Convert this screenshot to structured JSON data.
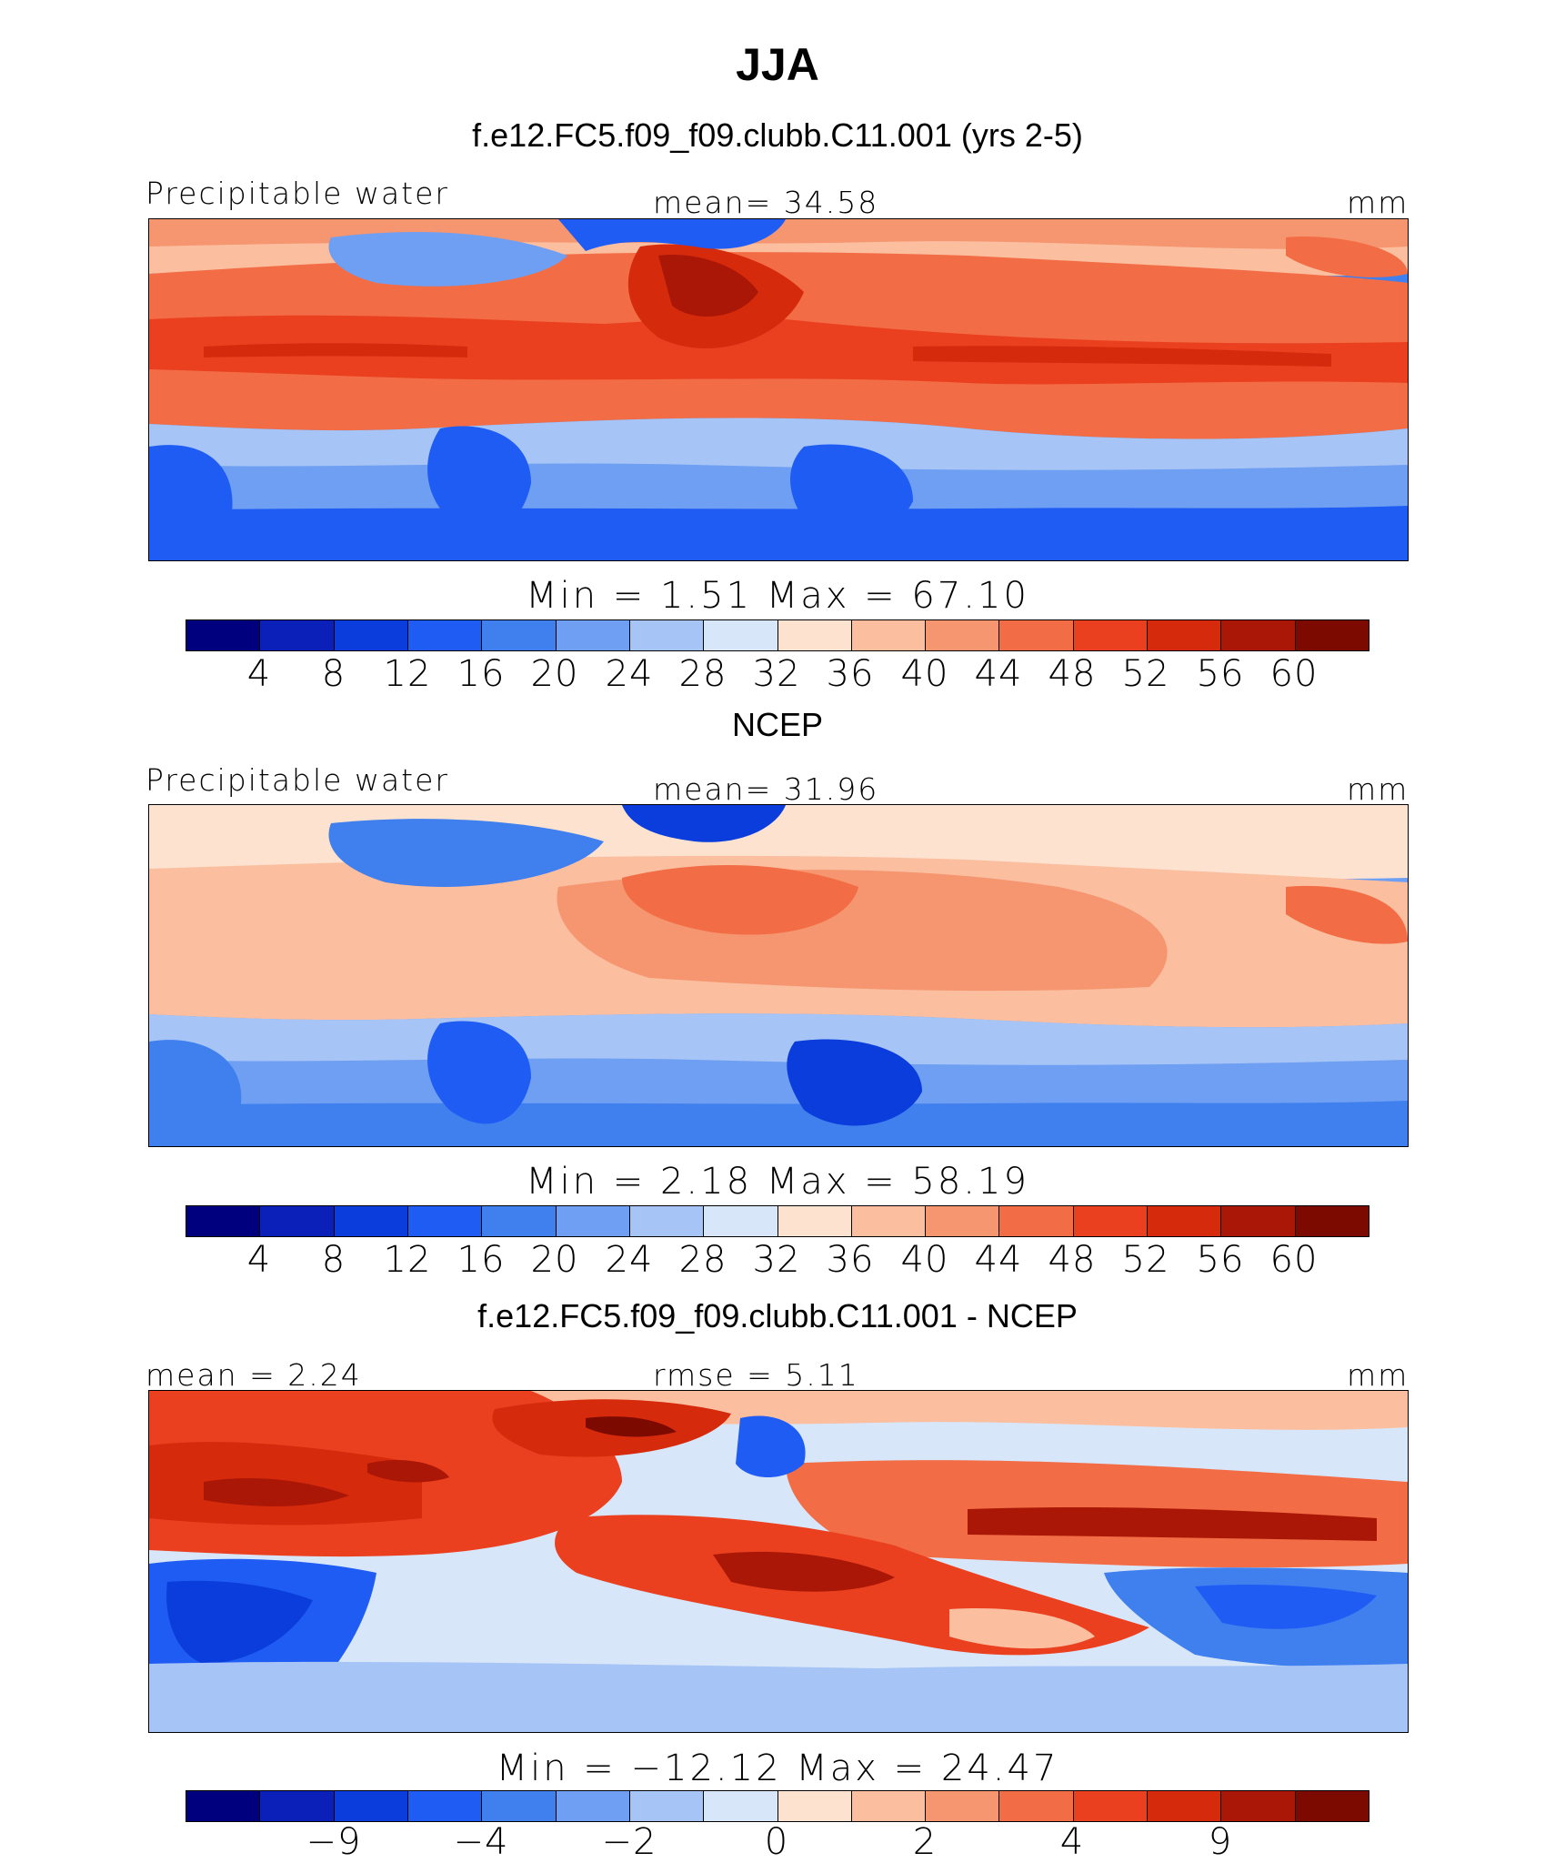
{
  "figure_title": "JJA",
  "palette": [
    "#00007f",
    "#0a20b8",
    "#0a3ddc",
    "#1f5cf4",
    "#3f7fee",
    "#6f9ff2",
    "#a6c4f5",
    "#d8e6fa",
    "#fde2cf",
    "#fbbfa0",
    "#f59670",
    "#f26d45",
    "#ea4020",
    "#d62a0c",
    "#ab1706",
    "#7d0a00"
  ],
  "panels": [
    {
      "id": "model",
      "title": "f.e12.FC5.f09_f09.clubb.C11.001 (yrs 2-5)",
      "left_label": "Precipitable water",
      "center_label": "mean=   34.58",
      "units": "mm",
      "stats": "Min =     1.51  Max =   67.10",
      "colorbar_ticks": [
        "4",
        "8",
        "12",
        "16",
        "20",
        "24",
        "28",
        "32",
        "36",
        "40",
        "44",
        "48",
        "52",
        "56",
        "60"
      ]
    },
    {
      "id": "obs",
      "title": "NCEP",
      "left_label": "Precipitable water",
      "center_label": "mean=   31.96",
      "units": "mm",
      "stats": "Min =     2.18  Max =   58.19",
      "colorbar_ticks": [
        "4",
        "8",
        "12",
        "16",
        "20",
        "24",
        "28",
        "32",
        "36",
        "40",
        "44",
        "48",
        "52",
        "56",
        "60"
      ]
    },
    {
      "id": "diff",
      "title": "f.e12.FC5.f09_f09.clubb.C11.001 - NCEP",
      "left_label": "mean =    2.24",
      "center_label": "rmse =    5.11",
      "units": "mm",
      "stats": "Min = −12.12  Max =   24.47",
      "colorbar_ticks": [
        "−9",
        "−4",
        "−2",
        "0",
        "2",
        "4",
        "9"
      ]
    }
  ]
}
